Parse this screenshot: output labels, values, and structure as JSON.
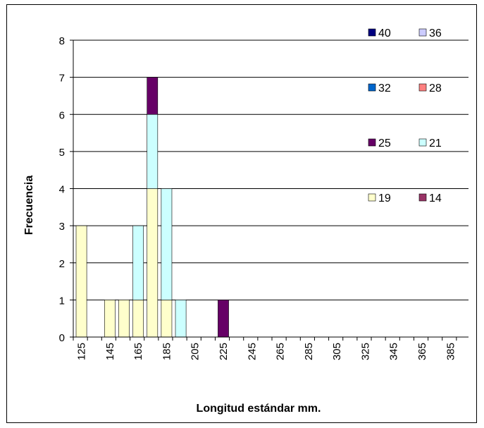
{
  "chart_data": {
    "type": "bar",
    "stacked": true,
    "title": "",
    "xlabel": "Longitud estándar mm.",
    "ylabel": "Frecuencia",
    "ylim": [
      0,
      8
    ],
    "yticks": [
      "0",
      "1",
      "2",
      "3",
      "4",
      "5",
      "6",
      "7",
      "8"
    ],
    "categories": [
      "125",
      "135",
      "145",
      "155",
      "165",
      "175",
      "185",
      "195",
      "205",
      "215",
      "225",
      "235",
      "245",
      "255",
      "265",
      "275",
      "285",
      "295",
      "305",
      "315",
      "325",
      "335",
      "345",
      "355",
      "365",
      "375",
      "385",
      "395"
    ],
    "xtick_labels": [
      "125",
      "145",
      "165",
      "185",
      "205",
      "225",
      "245",
      "265",
      "285",
      "305",
      "325",
      "345",
      "365",
      "385"
    ],
    "grid": "horizontal",
    "legend_position": "top-right",
    "series": [
      {
        "name": "40",
        "color": "#000080",
        "values": [
          0,
          0,
          0,
          0,
          0,
          0,
          0,
          0,
          0,
          0,
          0,
          0,
          0,
          0,
          0,
          0,
          0,
          0,
          0,
          0,
          0,
          0,
          0,
          0,
          0,
          0,
          0,
          0
        ]
      },
      {
        "name": "36",
        "color": "#CCCCFF",
        "values": [
          0,
          0,
          0,
          0,
          0,
          0,
          0,
          0,
          0,
          0,
          0,
          0,
          0,
          0,
          0,
          0,
          0,
          0,
          0,
          0,
          0,
          0,
          0,
          0,
          0,
          0,
          0,
          0
        ]
      },
      {
        "name": "32",
        "color": "#0066CC",
        "values": [
          0,
          0,
          0,
          0,
          0,
          0,
          0,
          0,
          0,
          0,
          0,
          0,
          0,
          0,
          0,
          0,
          0,
          0,
          0,
          0,
          0,
          0,
          0,
          0,
          0,
          0,
          0,
          0
        ]
      },
      {
        "name": "28",
        "color": "#FF8080",
        "values": [
          0,
          0,
          0,
          0,
          0,
          0,
          0,
          0,
          0,
          0,
          0,
          0,
          0,
          0,
          0,
          0,
          0,
          0,
          0,
          0,
          0,
          0,
          0,
          0,
          0,
          0,
          0,
          0
        ]
      },
      {
        "name": "25",
        "color": "#660066",
        "values": [
          0,
          0,
          0,
          0,
          0,
          1,
          0,
          0,
          0,
          0,
          1,
          0,
          0,
          0,
          0,
          0,
          0,
          0,
          0,
          0,
          0,
          0,
          0,
          0,
          0,
          0,
          0,
          0
        ]
      },
      {
        "name": "21",
        "color": "#CCFFFF",
        "values": [
          0,
          0,
          0,
          0,
          2,
          2,
          3,
          1,
          0,
          0,
          0,
          0,
          0,
          0,
          0,
          0,
          0,
          0,
          0,
          0,
          0,
          0,
          0,
          0,
          0,
          0,
          0,
          0
        ]
      },
      {
        "name": "19",
        "color": "#FFFFCC",
        "values": [
          3,
          0,
          1,
          1,
          1,
          4,
          1,
          0,
          0,
          0,
          0,
          0,
          0,
          0,
          0,
          0,
          0,
          0,
          0,
          0,
          0,
          0,
          0,
          0,
          0,
          0,
          0,
          0
        ]
      },
      {
        "name": "14",
        "color": "#993366",
        "values": [
          0,
          0,
          0,
          0,
          0,
          0,
          0,
          0,
          0,
          0,
          0,
          0,
          0,
          0,
          0,
          0,
          0,
          0,
          0,
          0,
          0,
          0,
          0,
          0,
          0,
          0,
          0,
          0
        ]
      }
    ],
    "stack_order_bottom_to_top": [
      "19",
      "21",
      "25",
      "14",
      "28",
      "32",
      "36",
      "40"
    ],
    "legend_order": [
      "40",
      "36",
      "32",
      "28",
      "25",
      "21",
      "19",
      "14"
    ]
  }
}
